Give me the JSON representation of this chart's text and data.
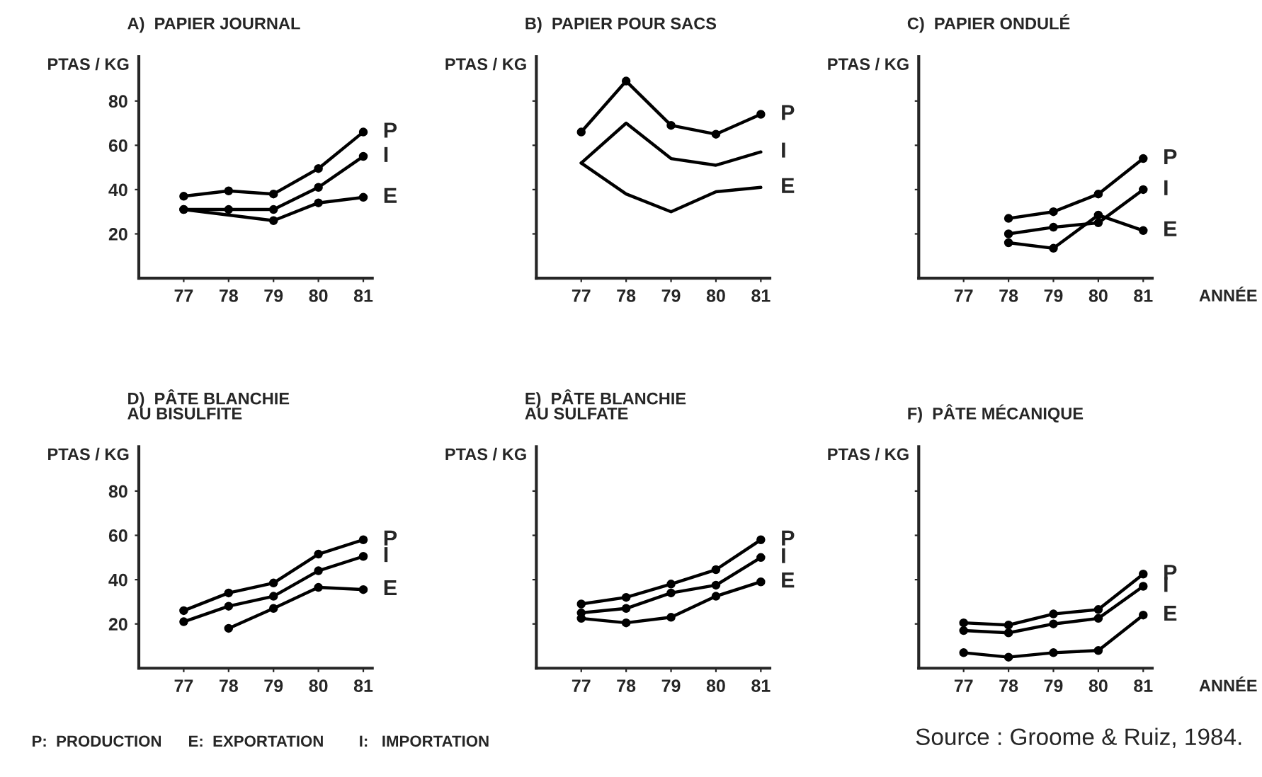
{
  "chart_data": [
    {
      "type": "line",
      "title": "A)  PAPIER JOURNAL",
      "ylabel": "PTAS / KG",
      "x": [
        77,
        78,
        79,
        80,
        81
      ],
      "xlim": [
        76,
        81.2
      ],
      "xticks": [
        77,
        78,
        79,
        80,
        81
      ],
      "ylim": [
        0,
        100
      ],
      "yticks": [
        20,
        40,
        60,
        80
      ],
      "marker": "circle",
      "grid": false,
      "legend": false,
      "series": [
        {
          "name": "P",
          "color": "#000000",
          "values": [
            37,
            39.4,
            38,
            49.5,
            66
          ]
        },
        {
          "name": "I",
          "color": "#000000",
          "values": [
            31,
            31,
            31,
            41,
            55
          ]
        },
        {
          "name": "E",
          "color": "#000000",
          "x": [
            77,
            79,
            80,
            81
          ],
          "values": [
            31,
            26,
            34,
            36.5
          ]
        }
      ]
    },
    {
      "type": "line",
      "title": "B)  PAPIER POUR SACS",
      "ylabel": "PTAS / KG",
      "x": [
        77,
        78,
        79,
        80,
        81
      ],
      "xlim": [
        76,
        81.2
      ],
      "xticks": [
        77,
        78,
        79,
        80,
        81
      ],
      "ylim": [
        0,
        100
      ],
      "yticks": [
        {
          "value": 20,
          "label": null
        },
        {
          "value": 40,
          "label": null
        },
        {
          "value": 60,
          "label": null
        },
        {
          "value": 80,
          "label": null
        }
      ],
      "tick_labels": "x",
      "marker": "circle",
      "grid": false,
      "legend": false,
      "series": [
        {
          "name": "P",
          "color": "#000000",
          "values": [
            66,
            89,
            69,
            65,
            74
          ]
        },
        {
          "name": "I",
          "color": "#000000",
          "marker": "none",
          "values": [
            52,
            70,
            54,
            51,
            57
          ]
        },
        {
          "name": "E",
          "color": "#000000",
          "marker": "none",
          "values": [
            52,
            38,
            30,
            39,
            41
          ]
        }
      ]
    },
    {
      "type": "line",
      "title": "C)  PAPIER ONDULÉ",
      "ylabel": "PTAS / KG",
      "xlabel": "ANNÉE",
      "x": [
        78,
        79,
        80,
        81
      ],
      "xlim": [
        76,
        81.2
      ],
      "xticks": [
        77,
        78,
        79,
        80,
        81
      ],
      "ylim": [
        0,
        100
      ],
      "yticks": [
        {
          "value": 20,
          "label": null
        },
        {
          "value": 40,
          "label": null
        },
        {
          "value": 60,
          "label": null
        },
        {
          "value": 80,
          "label": null
        }
      ],
      "tick_labels": "x",
      "marker": "circle",
      "grid": false,
      "legend": false,
      "series": [
        {
          "name": "P",
          "color": "#000000",
          "values": [
            27,
            30,
            38,
            54
          ]
        },
        {
          "name": "I",
          "color": "#000000",
          "values": [
            20,
            23,
            25,
            40
          ]
        },
        {
          "name": "E",
          "color": "#000000",
          "values": [
            16,
            13.5,
            28.5,
            21.5
          ]
        }
      ]
    },
    {
      "type": "line",
      "title": "D)  PÂTE BLANCHIE\nAU BISULFITE",
      "ylabel": "PTAS / KG",
      "x": [
        77,
        78,
        79,
        80,
        81
      ],
      "xlim": [
        76,
        81.2
      ],
      "xticks": [
        77,
        78,
        79,
        80,
        81
      ],
      "ylim": [
        0,
        100
      ],
      "yticks": [
        20,
        40,
        60,
        80
      ],
      "marker": "circle",
      "grid": false,
      "legend": false,
      "series": [
        {
          "name": "P",
          "color": "#000000",
          "values": [
            26,
            34,
            38.5,
            51.5,
            58
          ]
        },
        {
          "name": "I",
          "color": "#000000",
          "values": [
            21,
            28,
            32.5,
            44,
            50.5
          ]
        },
        {
          "name": "E",
          "color": "#000000",
          "x": [
            78,
            79,
            80,
            81
          ],
          "values": [
            18,
            27,
            36.5,
            35.5
          ]
        }
      ]
    },
    {
      "type": "line",
      "title": "E)  PÂTE BLANCHIE\nAU SULFATE",
      "ylabel": "PTAS / KG",
      "x": [
        77,
        78,
        79,
        80,
        81
      ],
      "xlim": [
        76,
        81.2
      ],
      "xticks": [
        77,
        78,
        79,
        80,
        81
      ],
      "ylim": [
        0,
        100
      ],
      "yticks": [
        {
          "value": 20,
          "label": null
        },
        {
          "value": 40,
          "label": null
        },
        {
          "value": 60,
          "label": null
        },
        {
          "value": 80,
          "label": null
        }
      ],
      "tick_labels": "x",
      "marker": "circle",
      "grid": false,
      "legend": false,
      "series": [
        {
          "name": "P",
          "color": "#000000",
          "values": [
            29,
            32,
            38,
            44.5,
            58
          ]
        },
        {
          "name": "I",
          "color": "#000000",
          "values": [
            25,
            27,
            34,
            37.5,
            50
          ]
        },
        {
          "name": "E",
          "color": "#000000",
          "values": [
            22.5,
            20.5,
            23,
            32.5,
            39
          ]
        }
      ]
    },
    {
      "type": "line",
      "title": "F)  PÂTE MÉCANIQUE",
      "ylabel": "PTAS / KG",
      "xlabel": "ANNÉE",
      "x": [
        77,
        78,
        79,
        80,
        81
      ],
      "xlim": [
        76,
        81.2
      ],
      "xticks": [
        77,
        78,
        79,
        80,
        81
      ],
      "ylim": [
        0,
        100
      ],
      "yticks": [
        {
          "value": 20,
          "label": null
        },
        {
          "value": 40,
          "label": null
        },
        {
          "value": 60,
          "label": null
        },
        {
          "value": 80,
          "label": null
        }
      ],
      "tick_labels": "x",
      "marker": "circle",
      "grid": false,
      "legend": false,
      "annotations": [
        "P:  PRODUCTION      E:  EXPORTATION        I:   IMPORTATION",
        "Source : Groome & Ruiz, 1984."
      ],
      "series": [
        {
          "name": "P",
          "color": "#000000",
          "values": [
            20.5,
            19.5,
            24.5,
            26.5,
            42.5
          ]
        },
        {
          "name": "I",
          "color": "#000000",
          "values": [
            17,
            16,
            20,
            22.5,
            37
          ]
        },
        {
          "name": "E",
          "color": "#000000",
          "values": [
            7,
            5,
            7,
            8,
            24
          ]
        }
      ]
    }
  ]
}
